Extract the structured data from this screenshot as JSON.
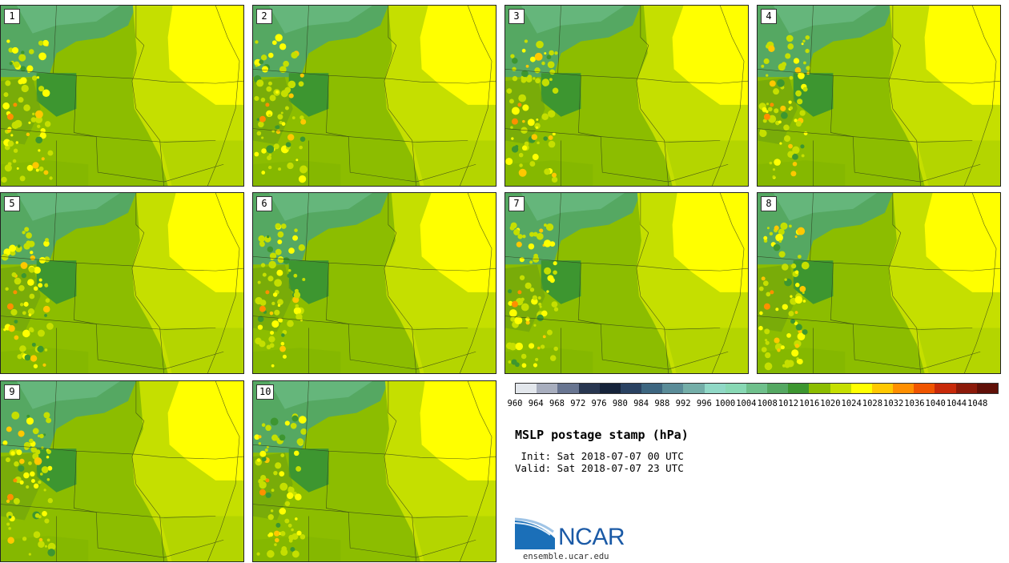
{
  "stamps": [
    "1",
    "2",
    "3",
    "4",
    "5",
    "6",
    "7",
    "8",
    "9",
    "10"
  ],
  "colorbar": {
    "colors": [
      "#e3e7ec",
      "#a8aebe",
      "#687591",
      "#283650",
      "#16233a",
      "#2a4262",
      "#3d6680",
      "#5a8c98",
      "#74aea8",
      "#90d8c6",
      "#88d8b4",
      "#6fc08c",
      "#55a862",
      "#3d9630",
      "#8cbd00",
      "#c5df00",
      "#ffff00",
      "#ffc800",
      "#ff8f00",
      "#f05500",
      "#c82a0a",
      "#8c1a0a",
      "#601008"
    ],
    "ticks": [
      "960",
      "964",
      "968",
      "972",
      "976",
      "980",
      "984",
      "988",
      "992",
      "996",
      "1000",
      "1004",
      "1008",
      "1012",
      "1016",
      "1020",
      "1024",
      "1028",
      "1032",
      "1036",
      "1040",
      "1044",
      "1048"
    ]
  },
  "title": "MSLP postage stamp (hPa)",
  "init_text": " Init: Sat 2018-07-07 00 UTC",
  "valid_text": "Valid: Sat 2018-07-07 23 UTC",
  "logo": {
    "text": "NCAR",
    "url": "ensemble.ucar.edu"
  }
}
